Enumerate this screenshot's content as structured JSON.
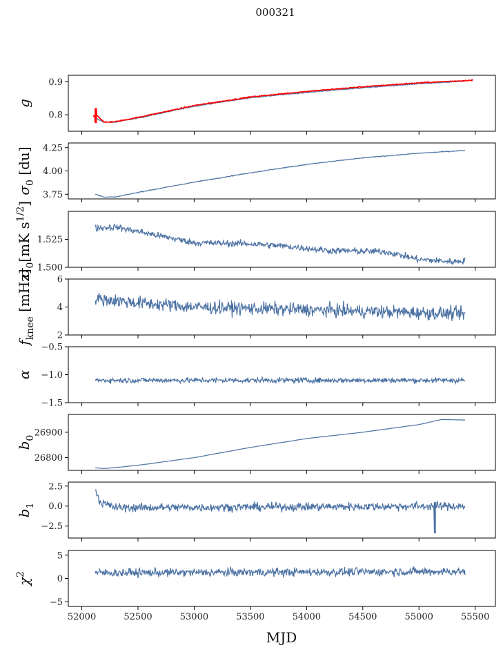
{
  "chart_data": {
    "type": "line",
    "title": "000321",
    "xlabel": "MJD",
    "xlim": [
      51880,
      55680
    ],
    "xticks": [
      52000,
      52500,
      53000,
      53500,
      54000,
      54500,
      55000,
      55500
    ],
    "x_start": 52120,
    "x_end": 55410,
    "colors": {
      "series": "#4c72a4",
      "overlay": "#ff0000"
    },
    "panels": [
      {
        "ylabel": "g",
        "ylabel_parts": [
          {
            "t": "g",
            "italic": true
          }
        ],
        "ylim": [
          0.75,
          0.92
        ],
        "yticks": [
          0.8,
          0.9
        ],
        "ytick_labels": [
          "0.8",
          "0.9"
        ],
        "series": [
          {
            "type": "line",
            "color": "#4c72a4",
            "points": [
              [
                52120,
                0.79
              ],
              [
                52200,
                0.777
              ],
              [
                52300,
                0.778
              ],
              [
                52500,
                0.79
              ],
              [
                53000,
                0.826
              ],
              [
                53500,
                0.852
              ],
              [
                54000,
                0.868
              ],
              [
                54500,
                0.882
              ],
              [
                55000,
                0.894
              ],
              [
                55410,
                0.902
              ]
            ],
            "noise": 0.0015
          },
          {
            "type": "line",
            "color": "#ff0000",
            "points": [
              [
                52100,
                0.795
              ],
              [
                52130,
                0.8
              ],
              [
                52200,
                0.777
              ],
              [
                52300,
                0.779
              ],
              [
                52500,
                0.792
              ],
              [
                53000,
                0.828
              ],
              [
                53500,
                0.854
              ],
              [
                54000,
                0.871
              ],
              [
                54500,
                0.885
              ],
              [
                55000,
                0.897
              ],
              [
                55480,
                0.905
              ]
            ],
            "noise": 0.0015,
            "spike": [
              52125,
              0.775,
              0.82
            ]
          }
        ]
      },
      {
        "ylabel": "σ0 [du]",
        "ylabel_parts": [
          {
            "t": "σ",
            "italic": true
          },
          {
            "t": "0",
            "sub": true
          },
          {
            "t": " [du]"
          }
        ],
        "ylim": [
          3.7,
          4.3
        ],
        "yticks": [
          3.75,
          4.0,
          4.25
        ],
        "ytick_labels": [
          "3.75",
          "4.00",
          "4.25"
        ],
        "series": [
          {
            "type": "line",
            "color": "#4c72a4",
            "points": [
              [
                52120,
                3.75
              ],
              [
                52200,
                3.72
              ],
              [
                52300,
                3.72
              ],
              [
                52500,
                3.77
              ],
              [
                53000,
                3.88
              ],
              [
                53500,
                3.98
              ],
              [
                54000,
                4.07
              ],
              [
                54500,
                4.14
              ],
              [
                55000,
                4.19
              ],
              [
                55410,
                4.22
              ]
            ],
            "noise": 0.004
          }
        ]
      },
      {
        "ylabel": "σ0[mK s1/2]",
        "ylabel_parts": [
          {
            "t": "σ",
            "italic": true
          },
          {
            "t": "0",
            "sub": true
          },
          {
            "t": "[mK s"
          },
          {
            "t": "1/2",
            "sup": true
          },
          {
            "t": "]"
          }
        ],
        "ylim": [
          1.5,
          1.55
        ],
        "yticks": [
          1.5,
          1.525
        ],
        "ytick_labels": [
          "1.500",
          "1.525"
        ],
        "series": [
          {
            "type": "line",
            "color": "#4c72a4",
            "points": [
              [
                52120,
                1.535
              ],
              [
                52300,
                1.536
              ],
              [
                52600,
                1.53
              ],
              [
                53000,
                1.522
              ],
              [
                53500,
                1.521
              ],
              [
                53800,
                1.519
              ],
              [
                54200,
                1.515
              ],
              [
                54700,
                1.514
              ],
              [
                55000,
                1.507
              ],
              [
                55300,
                1.505
              ],
              [
                55410,
                1.506
              ]
            ],
            "noise": 0.0028
          }
        ]
      },
      {
        "ylabel": "fknee [mHz]",
        "ylabel_parts": [
          {
            "t": "f",
            "italic": true
          },
          {
            "t": "knee",
            "sub": true
          },
          {
            "t": " [mHz]"
          }
        ],
        "ylim": [
          2,
          6
        ],
        "yticks": [
          2,
          4,
          6
        ],
        "ytick_labels": [
          "2",
          "4",
          "6"
        ],
        "series": [
          {
            "type": "line",
            "color": "#4c72a4",
            "points": [
              [
                52120,
                4.6
              ],
              [
                52500,
                4.3
              ],
              [
                53000,
                4.0
              ],
              [
                54000,
                3.8
              ],
              [
                55000,
                3.6
              ],
              [
                55410,
                3.5
              ]
            ],
            "noise": 0.45
          }
        ]
      },
      {
        "ylabel": "α",
        "ylabel_parts": [
          {
            "t": "α",
            "italic": true
          }
        ],
        "ylim": [
          -1.5,
          -0.5
        ],
        "yticks": [
          -1.5,
          -1.0,
          -0.5
        ],
        "ytick_labels": [
          "−1.5",
          "−1.0",
          "−0.5"
        ],
        "series": [
          {
            "type": "line",
            "color": "#4c72a4",
            "points": [
              [
                52120,
                -1.1
              ],
              [
                55410,
                -1.1
              ]
            ],
            "noise": 0.045
          }
        ]
      },
      {
        "ylabel": "b0",
        "ylabel_parts": [
          {
            "t": "b",
            "italic": true
          },
          {
            "t": "0",
            "sub": true
          }
        ],
        "ylim": [
          26750,
          26970
        ],
        "yticks": [
          26800,
          26900
        ],
        "ytick_labels": [
          "26800",
          "26900"
        ],
        "series": [
          {
            "type": "line",
            "color": "#4c72a4",
            "points": [
              [
                52120,
                26760
              ],
              [
                52200,
                26757
              ],
              [
                52500,
                26770
              ],
              [
                53000,
                26800
              ],
              [
                53500,
                26840
              ],
              [
                54000,
                26875
              ],
              [
                54500,
                26900
              ],
              [
                55000,
                26930
              ],
              [
                55200,
                26950
              ],
              [
                55410,
                26948
              ]
            ],
            "noise": 0.6
          }
        ]
      },
      {
        "ylabel": "b1",
        "ylabel_parts": [
          {
            "t": "b",
            "italic": true
          },
          {
            "t": "1",
            "sub": true
          }
        ],
        "ylim": [
          -4,
          3
        ],
        "yticks": [
          -2.5,
          0.0,
          2.5
        ],
        "ytick_labels": [
          "−2.5",
          "0.0",
          "2.5"
        ],
        "series": [
          {
            "type": "line",
            "color": "#4c72a4",
            "points": [
              [
                52120,
                2.3
              ],
              [
                52160,
                0.5
              ],
              [
                52300,
                -0.2
              ],
              [
                55410,
                0.0
              ]
            ],
            "noise": 0.5,
            "spike": [
              55140,
              -3.4,
              0.5
            ]
          }
        ]
      },
      {
        "ylabel": "χ2",
        "ylabel_parts": [
          {
            "t": "χ",
            "italic": true
          },
          {
            "t": "2",
            "sup": true
          }
        ],
        "ylim": [
          -6,
          6
        ],
        "yticks": [
          -5,
          0,
          5
        ],
        "ytick_labels": [
          "−5",
          "0",
          "5"
        ],
        "series": [
          {
            "type": "line",
            "color": "#4c72a4",
            "points": [
              [
                52120,
                1.2
              ],
              [
                55410,
                1.5
              ]
            ],
            "noise": 0.85
          }
        ]
      }
    ]
  }
}
